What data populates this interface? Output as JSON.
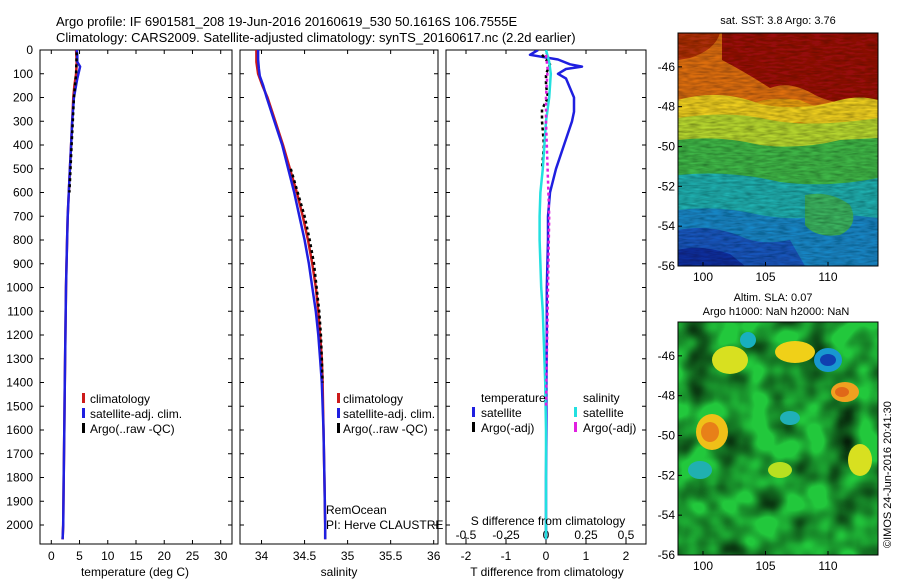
{
  "header": {
    "line1": "Argo profile: IF 6901581_208 19-Jun-2016 20160619_530 50.1616S 106.7555E",
    "line2": "Climatology: CARS2009. Satellite-adjusted climatology: synTS_20160617.nc (2.2d earlier)"
  },
  "colors": {
    "climatology": "#cc1a1a",
    "satellite": "#1f1fe0",
    "argo": "#000000",
    "satellite_diff": "#22e0e0",
    "argo_salinity_diff": "#e020e0"
  },
  "depth_ticks": [
    0,
    100,
    200,
    300,
    400,
    500,
    600,
    700,
    800,
    900,
    1000,
    1100,
    1200,
    1300,
    1400,
    1500,
    1600,
    1700,
    1800,
    1900,
    2000
  ],
  "chart_data": [
    {
      "type": "line",
      "name": "temperature-profile",
      "xlabel": "temperature (deg C)",
      "xlim": [
        -2,
        32
      ],
      "ylim": [
        2080,
        0
      ],
      "xticks": [
        0,
        5,
        10,
        15,
        20,
        25,
        30
      ],
      "legend": [
        "climatology",
        "satellite-adj. clim.",
        "Argo(..raw -QC)"
      ],
      "legend_position": "lower-center",
      "series": [
        {
          "name": "climatology",
          "color": "#cc1a1a",
          "depth": [
            0,
            50,
            100,
            150,
            200,
            300,
            400,
            500,
            600,
            700,
            800,
            900,
            1000,
            1200,
            1400,
            1600,
            1800,
            2000,
            2060
          ],
          "values": [
            4.4,
            4.5,
            4.4,
            4.1,
            3.9,
            3.7,
            3.5,
            3.3,
            3.1,
            2.9,
            2.8,
            2.7,
            2.6,
            2.5,
            2.4,
            2.3,
            2.2,
            2.1,
            2.0
          ]
        },
        {
          "name": "satellite-adj. clim.",
          "color": "#1f1fe0",
          "depth": [
            0,
            20,
            50,
            70,
            90,
            120,
            160,
            200,
            300,
            400,
            500,
            600,
            700,
            800,
            1000,
            1200,
            1400,
            1600,
            1800,
            2000,
            2060
          ],
          "values": [
            4.5,
            4.6,
            4.6,
            5.1,
            4.9,
            4.6,
            4.3,
            4.0,
            3.7,
            3.5,
            3.3,
            3.1,
            2.9,
            2.8,
            2.6,
            2.5,
            2.4,
            2.3,
            2.2,
            2.1,
            2.0
          ]
        },
        {
          "name": "Argo(..raw -QC)",
          "color": "#000000",
          "depth": [
            10,
            100,
            200,
            300,
            400,
            500,
            600
          ],
          "values": [
            4.5,
            4.4,
            4.0,
            3.8,
            3.6,
            3.4,
            3.2
          ]
        }
      ]
    },
    {
      "type": "line",
      "name": "salinity-profile",
      "xlabel": "salinity",
      "xlim": [
        33.75,
        36.05
      ],
      "ylim": [
        2080,
        0
      ],
      "xticks": [
        34,
        34.5,
        35,
        35.5,
        36
      ],
      "legend": [
        "climatology",
        "satellite-adj. clim.",
        "Argo(..raw -QC)"
      ],
      "legend_position": "lower-center",
      "annotation_line1": "RemOcean",
      "annotation_line2": "PI: Herve CLAUSTRE",
      "series": [
        {
          "name": "climatology",
          "color": "#cc1a1a",
          "depth": [
            0,
            50,
            100,
            150,
            200,
            300,
            400,
            500,
            600,
            700,
            800,
            900,
            1000,
            1100,
            1200,
            1300,
            1400,
            1600,
            1800,
            2000,
            2060
          ],
          "values": [
            33.94,
            33.94,
            33.96,
            34.01,
            34.07,
            34.16,
            34.25,
            34.33,
            34.41,
            34.48,
            34.54,
            34.59,
            34.63,
            34.66,
            34.68,
            34.7,
            34.71,
            34.72,
            34.73,
            34.74,
            34.74
          ]
        },
        {
          "name": "satellite-adj. clim.",
          "color": "#1f1fe0",
          "depth": [
            0,
            40,
            80,
            110,
            150,
            200,
            300,
            400,
            500,
            600,
            700,
            800,
            900,
            1000,
            1100,
            1200,
            1300,
            1400,
            1600,
            1800,
            2000,
            2060
          ],
          "values": [
            33.96,
            33.96,
            33.97,
            33.98,
            34.02,
            34.06,
            34.15,
            34.24,
            34.31,
            34.38,
            34.44,
            34.5,
            34.55,
            34.59,
            34.63,
            34.66,
            34.68,
            34.7,
            34.72,
            34.73,
            34.74,
            34.74
          ]
        },
        {
          "name": "Argo(..raw -QC)",
          "color": "#000000",
          "depth": [
            500,
            600,
            700,
            800,
            900,
            1000,
            1100,
            1200,
            1300,
            1400
          ],
          "values": [
            34.34,
            34.42,
            34.5,
            34.56,
            34.61,
            34.64,
            34.67,
            34.69,
            34.7,
            34.71
          ]
        }
      ]
    },
    {
      "type": "line",
      "name": "difference-profile",
      "xlabel": "T difference from climatology",
      "top_axis_label": "S difference from climatology",
      "xlim": [
        -2.5,
        2.5
      ],
      "top_xlim": [
        -0.625,
        0.625
      ],
      "ylim": [
        2080,
        0
      ],
      "xticks": [
        -2,
        -1,
        0,
        1,
        2
      ],
      "top_xticks": [
        -0.5,
        -0.25,
        0,
        0.25,
        0.5
      ],
      "top_xtick_labels": [
        "-0.5",
        "-0.25",
        "0",
        "0.25",
        "0.5"
      ],
      "legend_col1_title": "temperature",
      "legend_col2_title": "salinity",
      "legend_col1_items": [
        "satellite",
        "Argo(-adj)"
      ],
      "legend_col2_items": [
        "satellite",
        "Argo(-adj)"
      ],
      "series": [
        {
          "name": "temperature satellite",
          "color": "#1f1fe0",
          "depth": [
            0,
            20,
            40,
            60,
            70,
            80,
            100,
            120,
            160,
            200,
            260,
            300,
            400,
            500,
            600,
            700,
            800,
            1000,
            1200,
            1400,
            1600,
            1800,
            2000,
            2060
          ],
          "values": [
            -0.2,
            -0.4,
            0.3,
            0.6,
            0.9,
            0.5,
            0.3,
            0.5,
            0.6,
            0.7,
            0.7,
            0.65,
            0.45,
            0.25,
            0.1,
            0.05,
            0.05,
            0.02,
            0.02,
            0.01,
            0.01,
            0.0,
            0.0,
            0.0
          ]
        },
        {
          "name": "temperature Argo(-adj)",
          "color": "#000000",
          "depth": [
            20,
            60,
            100,
            150,
            200,
            250,
            300,
            400,
            500
          ],
          "values": [
            -0.1,
            0.1,
            0.0,
            0.0,
            0.05,
            -0.1,
            -0.1,
            -0.05,
            -0.1
          ]
        },
        {
          "name": "salinity satellite",
          "color": "#22e0e0",
          "depth": [
            0,
            50,
            100,
            200,
            300,
            400,
            500,
            600,
            700,
            800,
            900,
            1000,
            1100,
            1200,
            1300,
            1400,
            1600,
            1800,
            2000,
            2060
          ],
          "values": [
            0.0,
            0.02,
            0.03,
            0.02,
            0.0,
            -0.01,
            -0.02,
            -0.035,
            -0.04,
            -0.04,
            -0.035,
            -0.03,
            -0.02,
            -0.015,
            -0.01,
            -0.005,
            0.0,
            0.0,
            0.0,
            0.0
          ]
        },
        {
          "name": "salinity Argo(-adj)",
          "color": "#e020e0",
          "depth": [
            20,
            80,
            140,
            200,
            300,
            500,
            700,
            900,
            1100,
            1300,
            1500
          ],
          "values": [
            0.0,
            0.01,
            0.005,
            0.0,
            0.0,
            0.01,
            0.02,
            0.015,
            0.01,
            0.005,
            0.0
          ]
        }
      ]
    },
    {
      "type": "heatmap",
      "name": "sst-map",
      "title": "sat. SST: 3.8 Argo: 3.76",
      "xticks": [
        100,
        105,
        110
      ],
      "yticks": [
        -46,
        -48,
        -50,
        -52,
        -54,
        -56
      ],
      "xlim": [
        98,
        114
      ],
      "ylim": [
        -56,
        -44.3
      ]
    },
    {
      "type": "heatmap",
      "name": "sla-map",
      "title_line1": "Altim. SLA: 0.07",
      "title_line2": "Argo h1000: NaN h2000: NaN",
      "xticks": [
        100,
        105,
        110
      ],
      "yticks": [
        -46,
        -48,
        -50,
        -52,
        -54,
        -56
      ],
      "xlim": [
        98,
        114
      ],
      "ylim": [
        -56,
        -44.3
      ]
    }
  ],
  "footer": {
    "credit": "©IMOS 24-Jun-2016 20:41:30"
  }
}
